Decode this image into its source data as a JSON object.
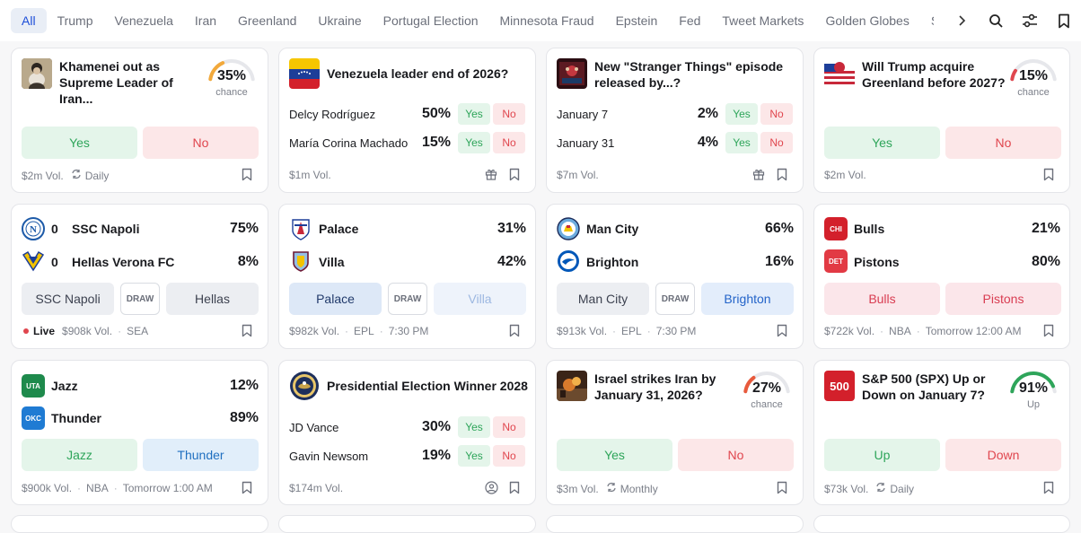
{
  "nav": {
    "tabs": [
      "All",
      "Trump",
      "Venezuela",
      "Iran",
      "Greenland",
      "Ukraine",
      "Portugal Election",
      "Minnesota Fraud",
      "Epstein",
      "Fed",
      "Tweet Markets",
      "Golden Globes",
      "Silver"
    ]
  },
  "cards": {
    "iran_leader": {
      "title": "Khamenei out as Supreme Leader of Iran...",
      "pct": "35%",
      "pct_value": 35,
      "pct_label": "chance",
      "yes": "Yes",
      "no": "No",
      "vol": "$2m Vol.",
      "recur": "Daily"
    },
    "venezuela": {
      "title": "Venezuela leader end of 2026?",
      "rows": [
        {
          "name": "Delcy Rodríguez",
          "pct": "50%",
          "yes": "Yes",
          "no": "No"
        },
        {
          "name": "María Corina Machado",
          "pct": "15%",
          "yes": "Yes",
          "no": "No"
        }
      ],
      "vol": "$1m Vol."
    },
    "stranger": {
      "title": "New \"Stranger Things\" episode released by...?",
      "rows": [
        {
          "name": "January 7",
          "pct": "2%",
          "yes": "Yes",
          "no": "No"
        },
        {
          "name": "January 31",
          "pct": "4%",
          "yes": "Yes",
          "no": "No"
        }
      ],
      "vol": "$7m Vol."
    },
    "greenland": {
      "title": "Will Trump acquire Greenland before 2027?",
      "pct": "15%",
      "pct_value": 15,
      "pct_label": "chance",
      "yes": "Yes",
      "no": "No",
      "vol": "$2m Vol."
    },
    "napoli": {
      "team1": "SSC Napoli",
      "score1": "0",
      "pct1": "75%",
      "team2": "Hellas Verona FC",
      "score2": "0",
      "pct2": "8%",
      "btn1": "SSC Napoli",
      "draw": "DRAW",
      "btn2": "Hellas",
      "live": "Live",
      "vol": "$908k Vol.",
      "league": "SEA"
    },
    "palace": {
      "team1": "Palace",
      "pct1": "31%",
      "team2": "Villa",
      "pct2": "42%",
      "btn1": "Palace",
      "draw": "DRAW",
      "btn2": "Villa",
      "vol": "$982k Vol.",
      "league": "EPL",
      "time": "7:30 PM"
    },
    "mancity": {
      "team1": "Man City",
      "pct1": "66%",
      "team2": "Brighton",
      "pct2": "16%",
      "btn1": "Man City",
      "draw": "DRAW",
      "btn2": "Brighton",
      "vol": "$913k Vol.",
      "league": "EPL",
      "time": "7:30 PM"
    },
    "bulls": {
      "team1": "Bulls",
      "badge1": "CHI",
      "pct1": "21%",
      "team2": "Pistons",
      "badge2": "DET",
      "pct2": "80%",
      "btn1": "Bulls",
      "btn2": "Pistons",
      "vol": "$722k Vol.",
      "league": "NBA",
      "time": "Tomorrow 12:00 AM"
    },
    "jazz": {
      "team1": "Jazz",
      "badge1": "UTA",
      "pct1": "12%",
      "team2": "Thunder",
      "badge2": "OKC",
      "pct2": "89%",
      "btn1": "Jazz",
      "btn2": "Thunder",
      "vol": "$900k Vol.",
      "league": "NBA",
      "time": "Tomorrow 1:00 AM"
    },
    "president": {
      "title": "Presidential Election Winner 2028",
      "rows": [
        {
          "name": "JD Vance",
          "pct": "30%",
          "yes": "Yes",
          "no": "No"
        },
        {
          "name": "Gavin Newsom",
          "pct": "19%",
          "yes": "Yes",
          "no": "No"
        }
      ],
      "vol": "$174m Vol."
    },
    "israel": {
      "title": "Israel strikes Iran by January 31, 2026?",
      "pct": "27%",
      "pct_value": 27,
      "pct_label": "chance",
      "yes": "Yes",
      "no": "No",
      "vol": "$3m Vol.",
      "recur": "Monthly"
    },
    "spx": {
      "title": "S&P 500 (SPX) Up or Down on January 7?",
      "thumb": "500",
      "pct": "91%",
      "pct_value": 91,
      "pct_label": "Up",
      "yes": "Up",
      "no": "Down",
      "vol": "$73k Vol.",
      "recur": "Daily"
    }
  },
  "colors": {
    "yes": "#2ea55a",
    "no": "#e0464e",
    "accent": "#1d4ed8"
  }
}
